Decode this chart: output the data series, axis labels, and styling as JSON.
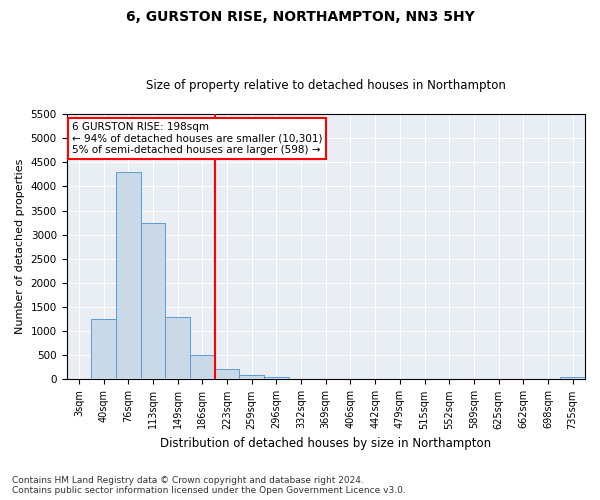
{
  "title_line1": "6, GURSTON RISE, NORTHAMPTON, NN3 5HY",
  "title_line2": "Size of property relative to detached houses in Northampton",
  "xlabel": "Distribution of detached houses by size in Northampton",
  "ylabel": "Number of detached properties",
  "footnote": "Contains HM Land Registry data © Crown copyright and database right 2024.\nContains public sector information licensed under the Open Government Licence v3.0.",
  "bar_labels": [
    "3sqm",
    "40sqm",
    "76sqm",
    "113sqm",
    "149sqm",
    "186sqm",
    "223sqm",
    "259sqm",
    "296sqm",
    "332sqm",
    "369sqm",
    "406sqm",
    "442sqm",
    "479sqm",
    "515sqm",
    "552sqm",
    "589sqm",
    "625sqm",
    "662sqm",
    "698sqm",
    "735sqm"
  ],
  "bar_values": [
    0,
    1250,
    4300,
    3250,
    1300,
    500,
    220,
    100,
    60,
    0,
    0,
    0,
    0,
    0,
    0,
    0,
    0,
    0,
    0,
    0,
    50
  ],
  "bar_color": "#c9d9e8",
  "bar_edgecolor": "#5b9bd5",
  "vline_index": 5.5,
  "vline_color": "red",
  "ylim": [
    0,
    5500
  ],
  "yticks": [
    0,
    500,
    1000,
    1500,
    2000,
    2500,
    3000,
    3500,
    4000,
    4500,
    5000,
    5500
  ],
  "annotation_text": "6 GURSTON RISE: 198sqm\n← 94% of detached houses are smaller (10,301)\n5% of semi-detached houses are larger (598) →",
  "annotation_box_color": "white",
  "annotation_box_edgecolor": "red",
  "background_color": "#e8eef4",
  "title_fontsize": 10,
  "subtitle_fontsize": 8.5,
  "footnote_fontsize": 6.5
}
